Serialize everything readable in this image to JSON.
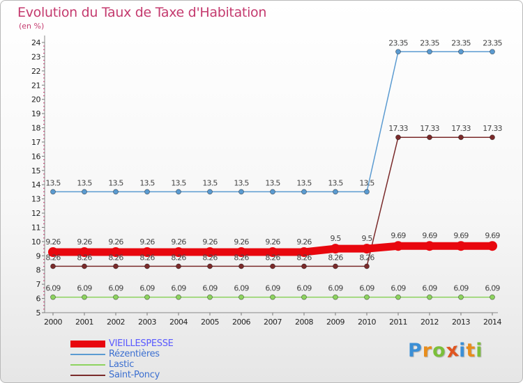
{
  "title": "Evolution du Taux de Taxe d'Habitation",
  "unit": "(en %)",
  "brand": {
    "letters": [
      "P",
      "r",
      "o",
      "x",
      "i",
      "t",
      "i"
    ],
    "colors": [
      "#3b8fd6",
      "#e88d1c",
      "#7bbf3a",
      "#e05520",
      "#3b8fd6",
      "#e88d1c",
      "#7bbf3a"
    ]
  },
  "chart_data": {
    "type": "line",
    "title": "Evolution du Taux de Taxe d'Habitation",
    "ylabel": "(en %)",
    "x": [
      "2000",
      "2001",
      "2002",
      "2003",
      "2004",
      "2005",
      "2006",
      "2007",
      "2008",
      "2009",
      "2010",
      "2011",
      "2012",
      "2013",
      "2014"
    ],
    "ylim": [
      5,
      24
    ],
    "yticks": [
      5,
      6,
      7,
      8,
      9,
      10,
      11,
      12,
      13,
      14,
      15,
      16,
      17,
      18,
      19,
      20,
      21,
      22,
      23,
      24
    ],
    "grid": false,
    "legend": "bottom-left",
    "series": [
      {
        "name": "VIEILLESPESSE",
        "color": "#e8070e",
        "values": [
          9.26,
          9.26,
          9.26,
          9.26,
          9.26,
          9.26,
          9.26,
          9.26,
          9.26,
          9.5,
          9.5,
          9.69,
          9.69,
          9.69,
          9.69
        ],
        "labels": [
          "9.26",
          "9.26",
          "9.26",
          "9.26",
          "9.26",
          "9.26",
          "9.26",
          "9.26",
          "9.26",
          "9.5",
          "9.5",
          "9.69",
          "9.69",
          "9.69",
          "9.69"
        ]
      },
      {
        "name": "Rézentières",
        "color": "#5b9bd1",
        "values": [
          13.5,
          13.5,
          13.5,
          13.5,
          13.5,
          13.5,
          13.5,
          13.5,
          13.5,
          13.5,
          13.5,
          23.35,
          23.35,
          23.35,
          23.35
        ],
        "labels": [
          "13.5",
          "13.5",
          "13.5",
          "13.5",
          "13.5",
          "13.5",
          "13.5",
          "13.5",
          "13.5",
          "13.5",
          "13.5",
          "23.35",
          "23.35",
          "23.35",
          "23.35"
        ]
      },
      {
        "name": "Lastic",
        "color": "#8dd35f",
        "values": [
          6.09,
          6.09,
          6.09,
          6.09,
          6.09,
          6.09,
          6.09,
          6.09,
          6.09,
          6.09,
          6.09,
          6.09,
          6.09,
          6.09,
          6.09
        ],
        "labels": [
          "6.09",
          "6.09",
          "6.09",
          "6.09",
          "6.09",
          "6.09",
          "6.09",
          "6.09",
          "6.09",
          "6.09",
          "6.09",
          "6.09",
          "6.09",
          "6.09",
          "6.09"
        ]
      },
      {
        "name": "Saint-Poncy",
        "color": "#7a2a2a",
        "values": [
          8.26,
          8.26,
          8.26,
          8.26,
          8.26,
          8.26,
          8.26,
          8.26,
          8.26,
          8.26,
          8.26,
          17.33,
          17.33,
          17.33,
          17.33
        ],
        "labels": [
          "8.26",
          "8.26",
          "8.26",
          "8.26",
          "8.26",
          "8.26",
          "8.26",
          "8.26",
          "8.26",
          "8.26",
          "8.26",
          "17.33",
          "17.33",
          "17.33",
          "17.33"
        ]
      }
    ]
  }
}
